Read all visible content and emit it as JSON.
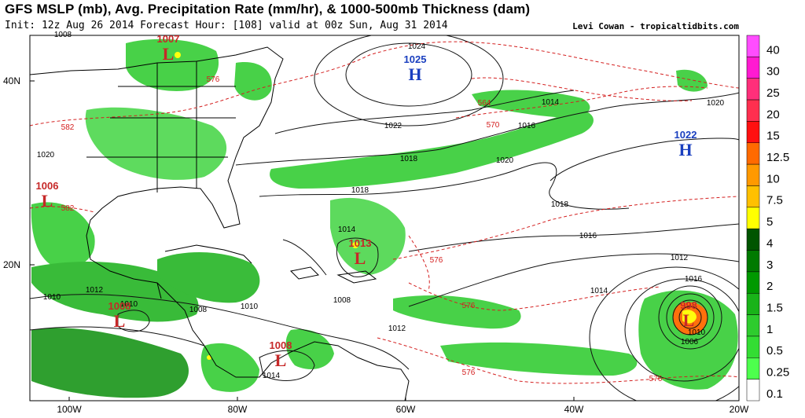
{
  "header": {
    "title": "GFS MSLP (mb), Avg. Precipitation Rate (mm/hr), & 1000-500mb Thickness (dam)",
    "subtitle": "Init: 12z Aug 26 2014 Forecast Hour: [108] valid at 00z Sun, Aug 31 2014",
    "credit": "Levi Cowan - tropicaltidbits.com"
  },
  "axes": {
    "lon_ticks": [
      "100W",
      "80W",
      "60W",
      "40W",
      "20W"
    ],
    "lat_ticks": [
      "40N",
      "20N"
    ]
  },
  "colorbar": {
    "labels": [
      "40",
      "30",
      "25",
      "20",
      "15",
      "12.5",
      "10",
      "7.5",
      "5",
      "4",
      "3",
      "2",
      "1.5",
      "1",
      "0.5",
      "0.25",
      "0.1"
    ],
    "colors": [
      "#ff4dff",
      "#ff1ad1",
      "#ff2f7a",
      "#ff2f4f",
      "#ff1010",
      "#ff6a00",
      "#ff9900",
      "#ffc000",
      "#ffff00",
      "#005500",
      "#007a00",
      "#009900",
      "#19b319",
      "#2ecc2e",
      "#33dd33",
      "#4dff4d",
      "#ffffff"
    ]
  },
  "pressure_centers": [
    {
      "letter": "L",
      "value": "1007",
      "color": "#c62828"
    },
    {
      "letter": "H",
      "value": "1025",
      "color": "#1a3fbf"
    },
    {
      "letter": "H",
      "value": "1022",
      "color": "#1a3fbf"
    },
    {
      "letter": "L",
      "value": "1006",
      "color": "#c62828"
    },
    {
      "letter": "L",
      "value": "1013",
      "color": "#c62828"
    },
    {
      "letter": "L",
      "value": "1008",
      "color": "#c62828"
    },
    {
      "letter": "L",
      "value": "1008",
      "color": "#c62828"
    },
    {
      "letter": "L",
      "value": "998",
      "color": "#c62828"
    }
  ],
  "isobar_labels": [
    "1008",
    "1024",
    "1014",
    "1020",
    "1022",
    "1016",
    "1020",
    "1018",
    "1018",
    "1020",
    "1018",
    "1016",
    "1014",
    "1012",
    "1016",
    "1014",
    "1010",
    "1012",
    "1008",
    "1010",
    "1012",
    "1014",
    "1010",
    "1006",
    "1010",
    "1008"
  ],
  "thickness_labels": [
    "576",
    "582",
    "582",
    "564",
    "570",
    "576",
    "576",
    "576",
    "576"
  ]
}
